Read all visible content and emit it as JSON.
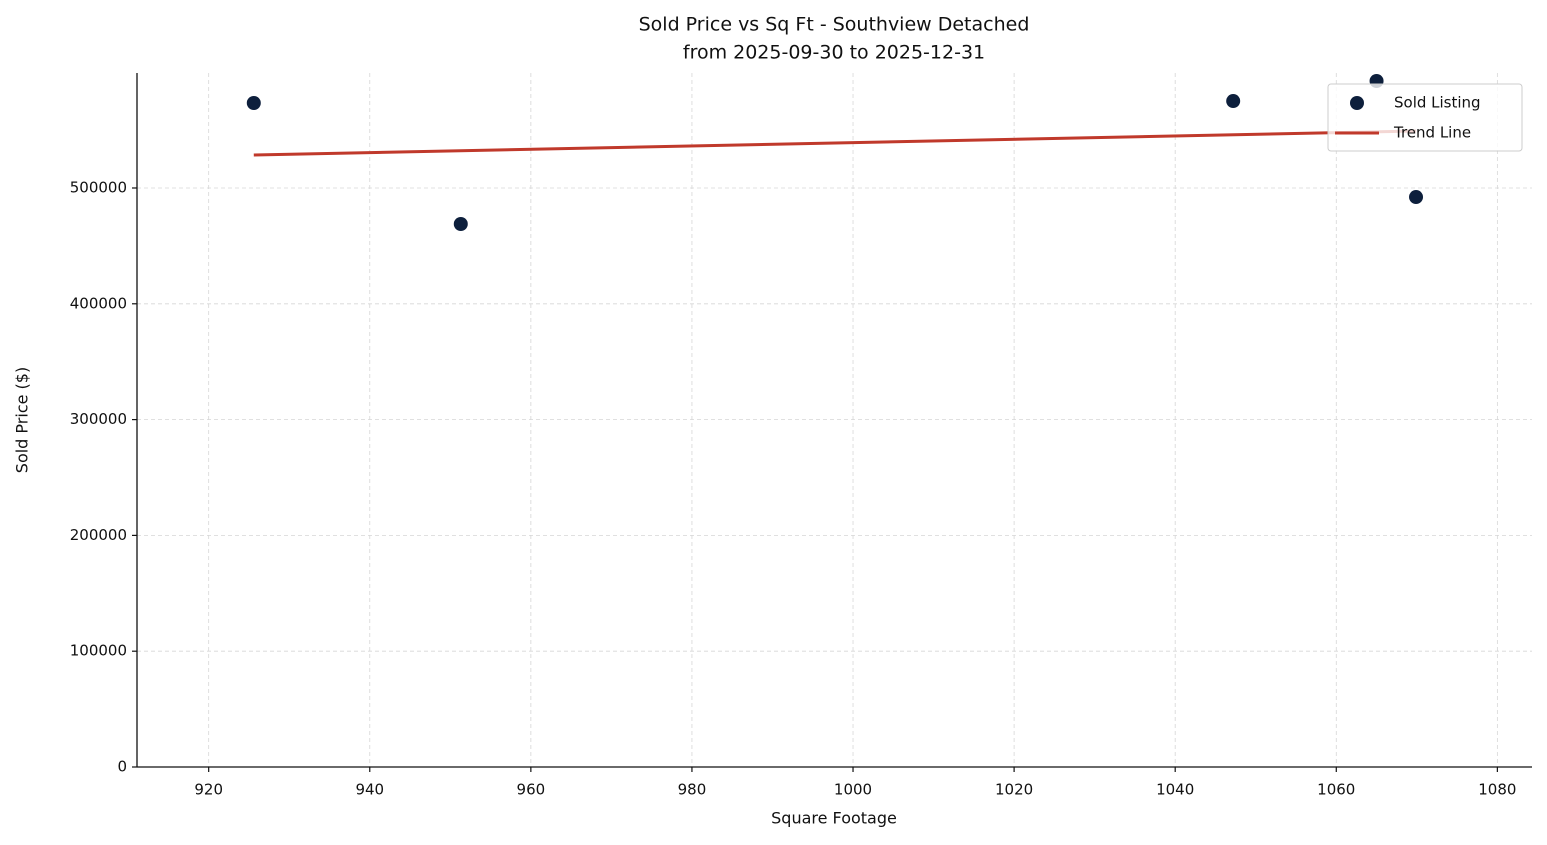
{
  "chart_data": {
    "type": "scatter",
    "title": "Sold Price vs Sq Ft - Southview Detached",
    "subtitle": "from 2025-09-30 to 2025-12-31",
    "x_label": "Square Footage",
    "y_label": "Sold Price ($)",
    "xlim": [
      911.1,
      1084.3
    ],
    "xticks": [
      920,
      940,
      960,
      980,
      1000,
      1020,
      1040,
      1060,
      1080
    ],
    "ylim": [
      0,
      599300
    ],
    "yticks": [
      0,
      100000,
      200000,
      300000,
      400000,
      500000
    ],
    "grid": true,
    "legend": "upper right",
    "series": [
      {
        "name": "Sold Listing",
        "type": "scatter",
        "color": "#0d1f3c",
        "x": [
          925.6,
          951.3,
          1047.2,
          1065.0,
          1069.9
        ],
        "values": [
          573400,
          468900,
          575100,
          592400,
          492200
        ]
      },
      {
        "name": "Trend Line",
        "type": "line",
        "color": "#c0392b",
        "x": [
          925.6,
          1069.9
        ],
        "values": [
          528500,
          549200
        ]
      }
    ]
  }
}
